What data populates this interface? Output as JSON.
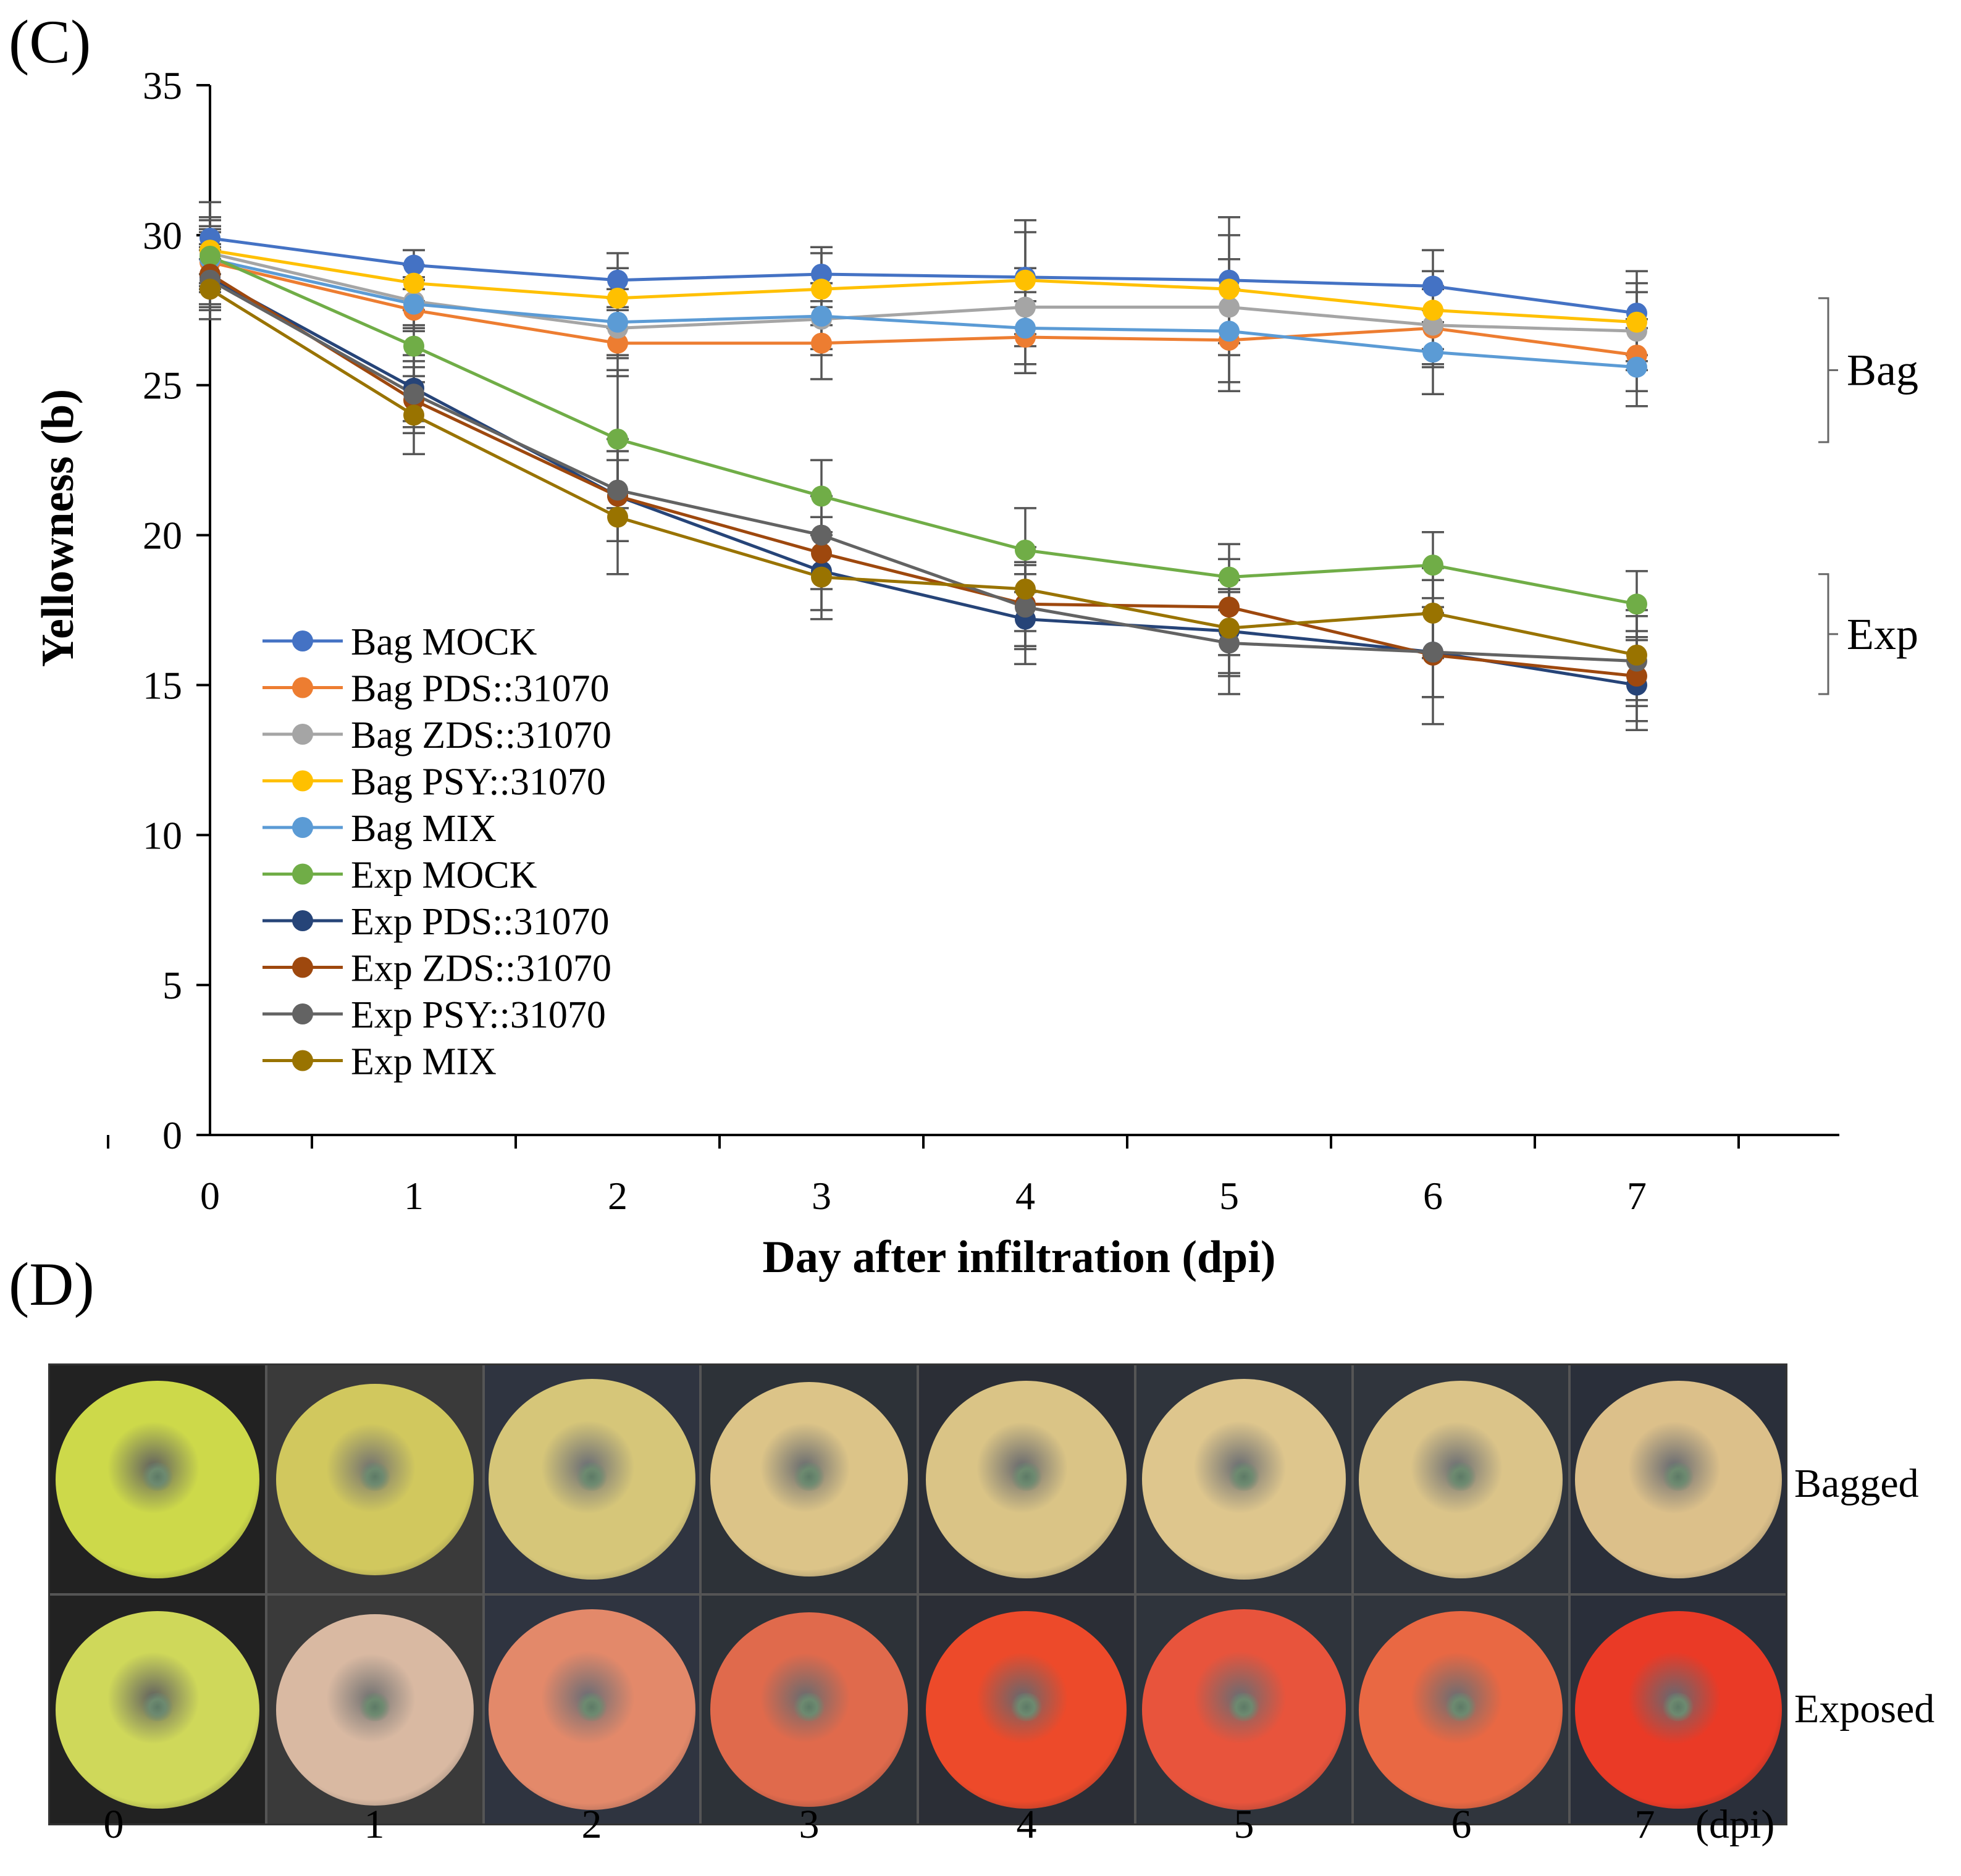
{
  "panels": {
    "c_label": "(C)",
    "d_label": "(D)"
  },
  "chart_data": {
    "type": "line",
    "title": "",
    "xlabel": "Day after infiltration (dpi)",
    "ylabel": "Yellowness (b)",
    "x": [
      0,
      1,
      2,
      3,
      4,
      5,
      6,
      7
    ],
    "xticks": [
      "0",
      "1",
      "2",
      "3",
      "4",
      "5",
      "6",
      "7"
    ],
    "ylim": [
      0,
      35
    ],
    "yticks": [
      "0",
      "5",
      "10",
      "15",
      "20",
      "25",
      "30",
      "35"
    ],
    "yticks_values": [
      0,
      5,
      10,
      15,
      20,
      25,
      30,
      35
    ],
    "grid": false,
    "legend_position": "lower-left",
    "brackets": [
      {
        "label": "Bag",
        "range": [
          23.1,
          27.9
        ]
      },
      {
        "label": "Exp",
        "range": [
          14.7,
          18.7
        ]
      }
    ],
    "series": [
      {
        "name": "Bag MOCK",
        "color": "#4472C4",
        "values": [
          29.9,
          29.0,
          28.5,
          28.7,
          28.6,
          28.5,
          28.3,
          27.4
        ],
        "errors": [
          1.2,
          0.5,
          0.9,
          0.9,
          1.9,
          2.1,
          1.2,
          1.4
        ]
      },
      {
        "name": "Bag PDS::31070",
        "color": "#ED7D31",
        "values": [
          29.1,
          27.5,
          26.4,
          26.4,
          26.6,
          26.5,
          26.9,
          26.0
        ],
        "errors": [
          1.0,
          0.7,
          1.1,
          1.2,
          1.2,
          1.7,
          1.3,
          1.2
        ]
      },
      {
        "name": "Bag ZDS::31070",
        "color": "#A5A5A5",
        "values": [
          29.4,
          27.8,
          26.9,
          27.2,
          27.6,
          27.6,
          27.0,
          26.8
        ],
        "errors": [
          1.1,
          0.8,
          1.0,
          1.2,
          1.3,
          1.6,
          1.3,
          1.3
        ]
      },
      {
        "name": "Bag PSY::31070",
        "color": "#FFC000",
        "values": [
          29.5,
          28.4,
          27.9,
          28.2,
          28.5,
          28.2,
          27.5,
          27.1
        ],
        "errors": [
          1.1,
          0.6,
          1.0,
          1.2,
          1.6,
          1.8,
          1.3,
          1.3
        ]
      },
      {
        "name": "Bag MIX",
        "color": "#5B9BD5",
        "values": [
          29.2,
          27.7,
          27.1,
          27.3,
          26.9,
          26.8,
          26.1,
          25.6
        ],
        "errors": [
          1.0,
          0.8,
          1.1,
          1.1,
          1.2,
          1.7,
          1.4,
          1.3
        ]
      },
      {
        "name": "Exp MOCK",
        "color": "#70AD47",
        "values": [
          29.3,
          26.3,
          23.2,
          21.3,
          19.5,
          18.6,
          19.0,
          17.7
        ],
        "errors": [
          1.0,
          1.2,
          2.3,
          1.2,
          1.4,
          1.1,
          1.1,
          1.1
        ]
      },
      {
        "name": "Exp PDS::31070",
        "color": "#264478",
        "values": [
          28.6,
          24.9,
          21.3,
          18.8,
          17.2,
          16.8,
          16.1,
          15.0
        ],
        "errors": [
          1.0,
          1.1,
          1.5,
          1.3,
          1.5,
          1.4,
          1.5,
          1.5
        ]
      },
      {
        "name": "Exp ZDS::31070",
        "color": "#9E480E",
        "values": [
          28.7,
          24.5,
          21.3,
          19.4,
          17.7,
          17.6,
          16.0,
          15.3
        ],
        "errors": [
          1.0,
          1.1,
          1.5,
          1.2,
          1.4,
          1.6,
          1.4,
          1.5
        ]
      },
      {
        "name": "Exp PSY::31070",
        "color": "#636363",
        "values": [
          28.5,
          24.7,
          21.5,
          20.0,
          17.6,
          16.4,
          16.1,
          15.8
        ],
        "errors": [
          1.0,
          1.1,
          1.7,
          1.3,
          1.4,
          1.7,
          2.4,
          1.5
        ]
      },
      {
        "name": "Exp MIX",
        "color": "#997300",
        "values": [
          28.2,
          24.0,
          20.6,
          18.6,
          18.2,
          16.9,
          17.4,
          16.0
        ],
        "errors": [
          1.0,
          1.3,
          1.9,
          1.4,
          1.4,
          1.6,
          1.5,
          1.5
        ]
      }
    ]
  },
  "photos": {
    "rows": [
      {
        "label": "Bagged",
        "colors": [
          "#cdd94a",
          "#d1c85e",
          "#d6c679",
          "#dcc488",
          "#dac486",
          "#dec68d",
          "#dbc489",
          "#dcc08a"
        ]
      },
      {
        "label": "Exposed",
        "colors": [
          "#cfd85a",
          "#d9b9a2",
          "#e3896a",
          "#e06a4c",
          "#ed4a2a",
          "#e8543c",
          "#e96843",
          "#ea3a26"
        ]
      }
    ],
    "days": [
      "0",
      "1",
      "2",
      "3",
      "4",
      "5",
      "6",
      "7"
    ],
    "unit": "(dpi)"
  }
}
